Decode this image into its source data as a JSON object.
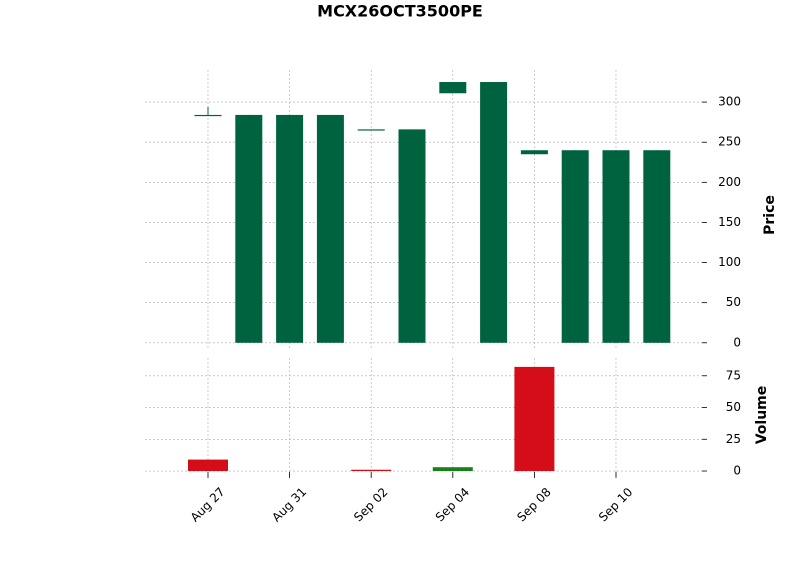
{
  "chart_data": {
    "type": "candlestick",
    "title": "MCX26OCT3500PE",
    "ylabel": "Price",
    "volume_label": "Volume",
    "categories": [
      "Aug 27",
      null,
      "Aug 31",
      null,
      "Sep 02",
      null,
      "Sep 04",
      null,
      "Sep 08",
      null,
      "Sep 10",
      null
    ],
    "open": [
      284,
      0,
      0,
      0,
      266,
      0,
      311,
      0,
      235,
      0,
      0,
      0
    ],
    "high": [
      294,
      284,
      284,
      284,
      266,
      266,
      325,
      325,
      240,
      240,
      240,
      240
    ],
    "low": [
      284,
      0,
      0,
      0,
      266,
      0,
      311,
      0,
      235,
      0,
      0,
      0
    ],
    "close": [
      284,
      284,
      284,
      284,
      266,
      266,
      325,
      325,
      240,
      240,
      240,
      240
    ],
    "volume": [
      9,
      0,
      0,
      0,
      1,
      0,
      3,
      0,
      82,
      0,
      0,
      0
    ],
    "volume_colors": [
      "#d50d18",
      "#d50d18",
      "#d50d18",
      "#d50d18",
      "#d50d18",
      "#1a7f1a",
      "#1a7f1a",
      "#d50d18",
      "#d50d18",
      "#d50d18",
      "#d50d18",
      "#d50d18"
    ],
    "up_color": "#006340",
    "down_color": "#d50d18",
    "ylim": [
      -9,
      340
    ],
    "yticks": [
      0,
      50,
      100,
      150,
      200,
      250,
      300
    ],
    "volume_ylim": [
      -5.5,
      89
    ],
    "volume_yticks": [
      0,
      25,
      50,
      75
    ],
    "grid": true
  }
}
